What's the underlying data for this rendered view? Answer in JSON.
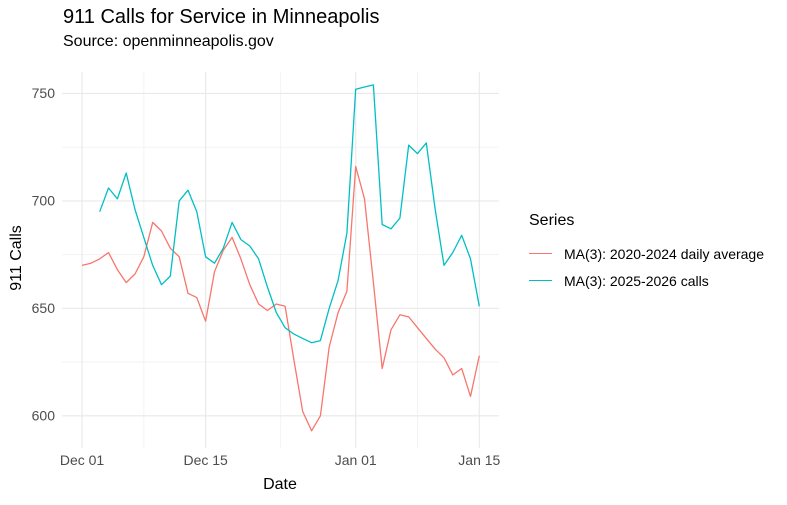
{
  "header": {
    "title": "911 Calls for Service in Minneapolis",
    "subtitle": "Source: openminneapolis.gov"
  },
  "chart_data": {
    "type": "line",
    "title": "911 Calls for Service in Minneapolis",
    "subtitle": "Source: openminneapolis.gov",
    "xlabel": "Date",
    "ylabel": "911 Calls",
    "grid": true,
    "legend_title": "Series",
    "legend_position": "right",
    "x_tick_labels": [
      "Dec 01",
      "Dec 15",
      "Jan 01",
      "Jan 15"
    ],
    "x_tick_days": [
      1,
      15,
      32,
      46
    ],
    "x_minor_days": [
      8,
      23.5,
      39
    ],
    "y_ticks": [
      600,
      650,
      700,
      750
    ],
    "y_minor": [
      625,
      675,
      725
    ],
    "ylim": [
      585,
      760
    ],
    "xlim_days": [
      -1.27,
      48.23
    ],
    "dates": [
      "Dec 01",
      "Dec 02",
      "Dec 03",
      "Dec 04",
      "Dec 05",
      "Dec 06",
      "Dec 07",
      "Dec 08",
      "Dec 09",
      "Dec 10",
      "Dec 11",
      "Dec 12",
      "Dec 13",
      "Dec 14",
      "Dec 15",
      "Dec 16",
      "Dec 17",
      "Dec 18",
      "Dec 19",
      "Dec 20",
      "Dec 21",
      "Dec 22",
      "Dec 23",
      "Dec 24",
      "Dec 25",
      "Dec 26",
      "Dec 27",
      "Dec 28",
      "Dec 29",
      "Dec 30",
      "Dec 31",
      "Jan 01",
      "Jan 02",
      "Jan 03",
      "Jan 04",
      "Jan 05",
      "Jan 06",
      "Jan 07",
      "Jan 08",
      "Jan 09",
      "Jan 10",
      "Jan 11",
      "Jan 12",
      "Jan 13",
      "Jan 14",
      "Jan 15"
    ],
    "series": [
      {
        "name": "MA(3): 2020-2024 daily average",
        "color": "#F8766D",
        "start_day": 1,
        "values": [
          670,
          671,
          673,
          676,
          668,
          662,
          666,
          674,
          690,
          686,
          678,
          674,
          657,
          655,
          644,
          667,
          677,
          683,
          673,
          661,
          652,
          649,
          652,
          651,
          626,
          602,
          593,
          600,
          632,
          648,
          658,
          716,
          701,
          662,
          622,
          640,
          647,
          646,
          641,
          636,
          631,
          627,
          619,
          622,
          609,
          628
        ]
      },
      {
        "name": "MA(3): 2025-2026 calls",
        "color": "#00BFC4",
        "start_day": 3,
        "values": [
          695,
          706,
          701,
          713,
          696,
          683,
          670,
          661,
          665,
          700,
          705,
          695,
          674,
          671,
          678,
          690,
          682,
          679,
          673,
          660,
          648,
          641,
          638,
          636,
          634,
          635,
          650,
          663,
          685,
          752,
          753,
          754,
          689,
          687,
          692,
          726,
          722,
          727,
          696,
          670,
          676,
          684,
          673,
          651
        ]
      }
    ]
  }
}
